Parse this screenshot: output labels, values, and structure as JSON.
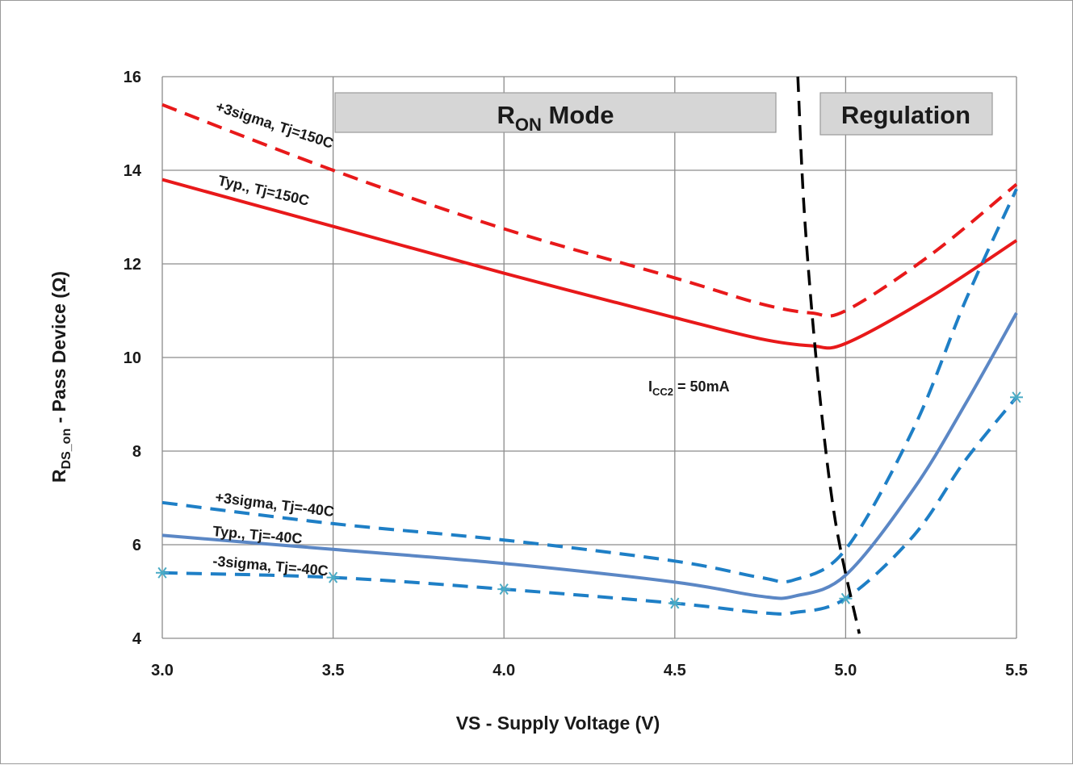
{
  "chart_data": {
    "type": "line",
    "xlabel": "VS - Supply Voltage (V)",
    "ylabel_main": "R",
    "ylabel_sub": "DS_on",
    "ylabel_rest": " - Pass Device (Ω)",
    "xlim": [
      3.0,
      5.5
    ],
    "ylim": [
      4,
      16
    ],
    "x_ticks": [
      "3.0",
      "3.5",
      "4.0",
      "4.5",
      "5.0",
      "5.5"
    ],
    "y_ticks": [
      "4",
      "6",
      "8",
      "10",
      "12",
      "14",
      "16"
    ],
    "grid": true,
    "colors": {
      "red": "#e8191a",
      "blue_dashed": "#1e7fc6",
      "blue_solid": "#5b87c5",
      "black": "#000000",
      "marker": "#4bacc6",
      "box": "#d6d6d6"
    },
    "series": [
      {
        "label": "+3sigma, Tj=150C",
        "style": "dashed",
        "color": "red",
        "x": [
          3.0,
          3.5,
          4.0,
          4.5,
          4.75,
          4.9,
          5.0,
          5.25,
          5.5
        ],
        "y": [
          15.4,
          14.0,
          12.75,
          11.7,
          11.15,
          10.95,
          11.0,
          12.2,
          13.7
        ]
      },
      {
        "label": "Typ., Tj=150C",
        "style": "solid",
        "color": "red",
        "x": [
          3.0,
          3.5,
          4.0,
          4.5,
          4.75,
          4.9,
          5.0,
          5.25,
          5.5
        ],
        "y": [
          13.8,
          12.8,
          11.8,
          10.85,
          10.4,
          10.25,
          10.3,
          11.3,
          12.5
        ]
      },
      {
        "label": "+3sigma, Tj=-40C",
        "style": "dashed",
        "color": "blue_dashed",
        "x": [
          3.0,
          3.5,
          4.0,
          4.5,
          4.75,
          4.85,
          5.0,
          5.2,
          5.35,
          5.5
        ],
        "y": [
          6.9,
          6.45,
          6.1,
          5.65,
          5.3,
          5.25,
          5.9,
          8.5,
          11.2,
          13.6
        ]
      },
      {
        "label": "Typ., Tj=-40C",
        "style": "solid",
        "color": "blue_solid",
        "x": [
          3.0,
          3.5,
          4.0,
          4.5,
          4.75,
          4.85,
          5.0,
          5.2,
          5.35,
          5.5
        ],
        "y": [
          6.2,
          5.9,
          5.6,
          5.2,
          4.9,
          4.9,
          5.35,
          7.2,
          9.0,
          10.95
        ]
      },
      {
        "label": "-3sigma, Tj=-40C",
        "style": "dashed",
        "color": "blue_dashed",
        "x": [
          3.0,
          3.5,
          4.0,
          4.5,
          4.75,
          4.85,
          5.0,
          5.2,
          5.35,
          5.5
        ],
        "y": [
          5.4,
          5.3,
          5.05,
          4.75,
          4.55,
          4.55,
          4.85,
          6.2,
          7.8,
          9.15
        ],
        "markers": [
          [
            3.0,
            5.4
          ],
          [
            3.5,
            5.3
          ],
          [
            4.0,
            5.05
          ],
          [
            4.5,
            4.75
          ],
          [
            5.0,
            4.85
          ],
          [
            5.5,
            9.15
          ]
        ]
      },
      {
        "label": "I",
        "label_sub": "CC2",
        "label_rest": " = 50mA",
        "style": "dashed",
        "color": "black",
        "x": [
          4.86,
          4.88,
          4.92,
          4.97,
          5.04
        ],
        "y": [
          16.0,
          13.0,
          9.5,
          6.5,
          4.1
        ]
      }
    ],
    "annotations": {
      "ron_mode_main": "R",
      "ron_mode_sub": "ON",
      "ron_mode_rest": " Mode",
      "regulation": "Regulation"
    }
  }
}
